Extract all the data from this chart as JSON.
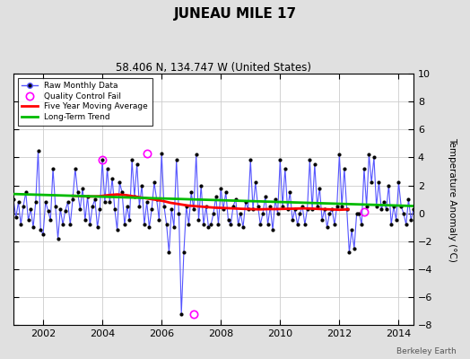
{
  "title": "JUNEAU MILE 17",
  "subtitle": "58.406 N, 134.747 W (United States)",
  "ylabel": "Temperature Anomaly (°C)",
  "credit": "Berkeley Earth",
  "ylim": [
    -8,
    10
  ],
  "xlim": [
    2001.0,
    2014.5
  ],
  "xticks": [
    2002,
    2004,
    2006,
    2008,
    2010,
    2012,
    2014
  ],
  "yticks": [
    -8,
    -6,
    -4,
    -2,
    0,
    2,
    4,
    6,
    8,
    10
  ],
  "bg_color": "#e0e0e0",
  "plot_bg": "#ffffff",
  "raw_color": "#5555ff",
  "ma_color": "#ff0000",
  "trend_color": "#00bb00",
  "marker_color": "#000000",
  "qc_color": "#ff00ff",
  "raw_data": [
    1.0,
    -0.3,
    0.8,
    -0.8,
    0.5,
    1.5,
    -0.5,
    0.3,
    -1.0,
    0.8,
    4.5,
    -1.2,
    -1.5,
    0.8,
    0.2,
    -0.5,
    3.2,
    0.5,
    -1.8,
    0.3,
    -0.8,
    0.2,
    0.8,
    -0.8,
    1.0,
    3.2,
    1.5,
    0.3,
    1.8,
    -0.5,
    1.2,
    -0.8,
    0.5,
    1.0,
    -1.0,
    0.3,
    3.8,
    0.8,
    3.2,
    0.8,
    2.5,
    0.3,
    -1.2,
    2.2,
    1.5,
    -0.8,
    0.5,
    -0.5,
    3.8,
    1.2,
    3.5,
    0.5,
    2.0,
    -0.8,
    0.8,
    -1.0,
    0.3,
    2.2,
    1.0,
    -0.5,
    4.3,
    0.5,
    -0.8,
    -2.8,
    0.3,
    -1.0,
    3.8,
    0.0,
    -7.2,
    -2.8,
    0.5,
    -0.8,
    1.5,
    0.3,
    4.2,
    -0.5,
    2.0,
    -0.8,
    0.5,
    -1.0,
    -0.8,
    0.0,
    1.2,
    -0.8,
    1.8,
    0.3,
    1.5,
    -0.5,
    -0.8,
    0.5,
    1.0,
    -0.8,
    0.0,
    -1.0,
    0.8,
    0.3,
    3.8,
    0.3,
    2.2,
    0.5,
    -0.8,
    0.0,
    1.2,
    -0.8,
    0.5,
    -1.2,
    1.0,
    0.0,
    3.8,
    0.5,
    3.2,
    0.3,
    1.5,
    -0.5,
    0.3,
    -0.8,
    0.0,
    0.5,
    -0.8,
    0.3,
    3.8,
    0.3,
    3.5,
    0.5,
    1.8,
    -0.5,
    0.3,
    -1.0,
    0.0,
    0.3,
    -0.8,
    0.5,
    4.2,
    0.5,
    3.2,
    0.3,
    -2.8,
    -1.2,
    -2.5,
    0.0,
    0.0,
    -0.8,
    3.2,
    0.5,
    4.2,
    2.2,
    4.0,
    0.5,
    2.2,
    0.3,
    0.8,
    0.3,
    2.0,
    -0.8,
    0.5,
    -0.5,
    2.2,
    0.5,
    0.0,
    -0.8,
    1.0,
    -0.5,
    0.3,
    -0.8,
    0.0,
    0.5,
    1.2,
    -0.5
  ],
  "time_start": 2001.0,
  "time_step": 0.083333,
  "qc_times": [
    2004.0,
    2005.5,
    2007.08,
    2012.83
  ],
  "qc_vals": [
    3.8,
    4.3,
    -7.2,
    0.1
  ],
  "ma_data": [
    [
      2003.0,
      1.25
    ],
    [
      2003.3,
      1.22
    ],
    [
      2003.6,
      1.2
    ],
    [
      2003.9,
      1.22
    ],
    [
      2004.2,
      1.3
    ],
    [
      2004.5,
      1.35
    ],
    [
      2004.8,
      1.3
    ],
    [
      2005.1,
      1.2
    ],
    [
      2005.4,
      1.1
    ],
    [
      2005.7,
      1.0
    ],
    [
      2006.0,
      0.9
    ],
    [
      2006.3,
      0.75
    ],
    [
      2006.6,
      0.65
    ],
    [
      2006.9,
      0.55
    ],
    [
      2007.2,
      0.5
    ],
    [
      2007.5,
      0.45
    ],
    [
      2007.8,
      0.4
    ],
    [
      2008.1,
      0.38
    ],
    [
      2008.4,
      0.35
    ],
    [
      2008.7,
      0.32
    ],
    [
      2009.0,
      0.3
    ],
    [
      2009.3,
      0.28
    ],
    [
      2009.6,
      0.3
    ],
    [
      2009.9,
      0.3
    ],
    [
      2010.2,
      0.32
    ],
    [
      2010.5,
      0.33
    ],
    [
      2010.8,
      0.35
    ],
    [
      2011.1,
      0.33
    ],
    [
      2011.4,
      0.3
    ],
    [
      2011.7,
      0.28
    ],
    [
      2012.0,
      0.25
    ],
    [
      2012.3,
      0.28
    ]
  ],
  "trend_x": [
    2001.0,
    2014.5
  ],
  "trend_y": [
    1.38,
    0.52
  ]
}
